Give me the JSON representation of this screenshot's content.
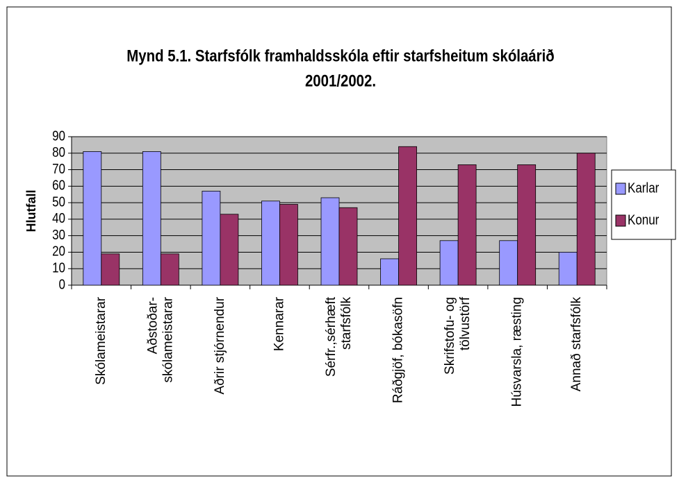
{
  "chart_data": {
    "type": "bar",
    "title": "Mynd 5.1. Starfsfólk framhaldsskóla eftir starfsheitum skólaárið\n2001/2002.",
    "y_label": "Hlutfall",
    "categories": [
      "Skólameistarar",
      "Aðstoðar-\nskólameistarar",
      "Aðrir stjórnendur",
      "Kennarar",
      "Sérfr.,sérhæft\nstarfsfólk",
      "Ráðgjöf, bókasöfn",
      "Skrifstofu- og\ntölvustörf",
      "Húsvarsla, ræsting",
      "Annað starfsfólk"
    ],
    "series": [
      {
        "name": "Karlar",
        "color": "#9999ff",
        "values": [
          81,
          81,
          57,
          51,
          53,
          16,
          27,
          27,
          20
        ]
      },
      {
        "name": "Konur",
        "color": "#993366",
        "values": [
          19,
          19,
          43,
          49,
          47,
          84,
          73,
          73,
          80
        ]
      }
    ],
    "ylim": [
      0,
      90
    ],
    "yticks": [
      0,
      10,
      20,
      30,
      40,
      50,
      60,
      70,
      80,
      90
    ],
    "grid": true,
    "legend": "right"
  }
}
